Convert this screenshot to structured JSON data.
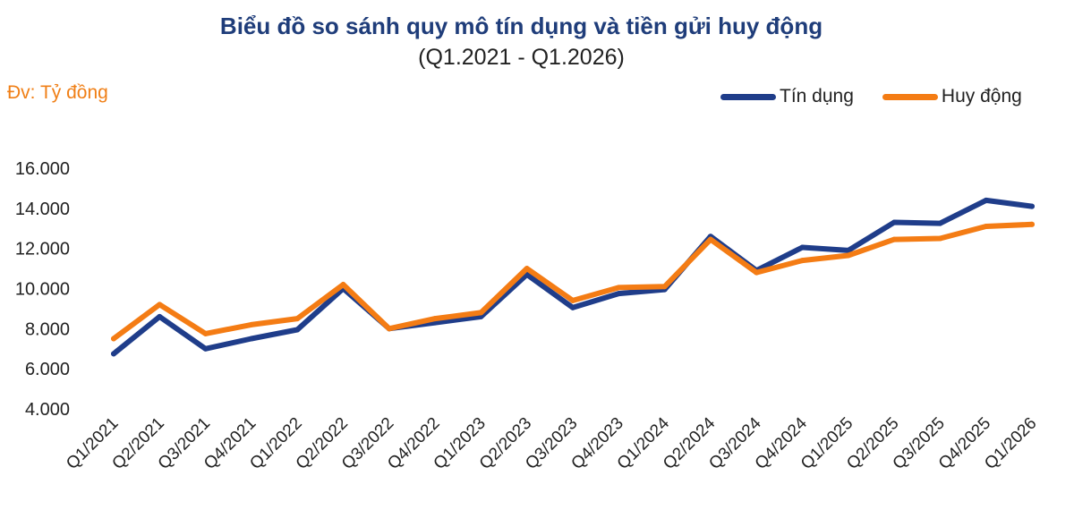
{
  "title": "Biểu đồ so sánh quy mô tín dụng và tiền gửi huy động",
  "subtitle": "(Q1.2021 - Q1.2026)",
  "unit_label": "Đv: Tỷ đồng",
  "colors": {
    "credit": "#1f3d8a",
    "deposit": "#f47c14"
  },
  "chart_data": {
    "type": "line",
    "title": "Biểu đồ so sánh quy mô tín dụng và tiền gửi huy động",
    "subtitle": "(Q1.2021 - Q1.2026)",
    "ylabel": "Đv: Tỷ đồng",
    "xlabel": "",
    "ylim": [
      4000,
      16000
    ],
    "yticks": [
      "4.000",
      "6.000",
      "8.000",
      "10.000",
      "12.000",
      "14.000",
      "16.000"
    ],
    "ytick_values": [
      4000,
      6000,
      8000,
      10000,
      12000,
      14000,
      16000
    ],
    "grid": false,
    "legend": "top-right",
    "categories": [
      "Q1/2021",
      "Q2/2021",
      "Q3/2021",
      "Q4/2021",
      "Q1/2022",
      "Q2/2022",
      "Q3/2022",
      "Q4/2022",
      "Q1/2023",
      "Q2/2023",
      "Q3/2023",
      "Q4/2023",
      "Q1/2024",
      "Q2/2024",
      "Q3/2024",
      "Q4/2024",
      "Q1/2025",
      "Q2/2025",
      "Q3/2025",
      "Q4/2025",
      "Q1/2026"
    ],
    "series": [
      {
        "name": "Tín dụng",
        "color": "#1f3d8a",
        "values": [
          6750,
          8600,
          7000,
          7500,
          7950,
          10000,
          8000,
          8300,
          8600,
          10700,
          9050,
          9750,
          9950,
          12600,
          10900,
          12050,
          11900,
          13300,
          13250,
          14400,
          14100
        ]
      },
      {
        "name": "Huy động",
        "color": "#f47c14",
        "values": [
          7500,
          9200,
          7750,
          8200,
          8500,
          10200,
          8000,
          8500,
          8800,
          11000,
          9400,
          10050,
          10100,
          12450,
          10800,
          11400,
          11650,
          12450,
          12500,
          13100,
          13200
        ]
      }
    ]
  }
}
